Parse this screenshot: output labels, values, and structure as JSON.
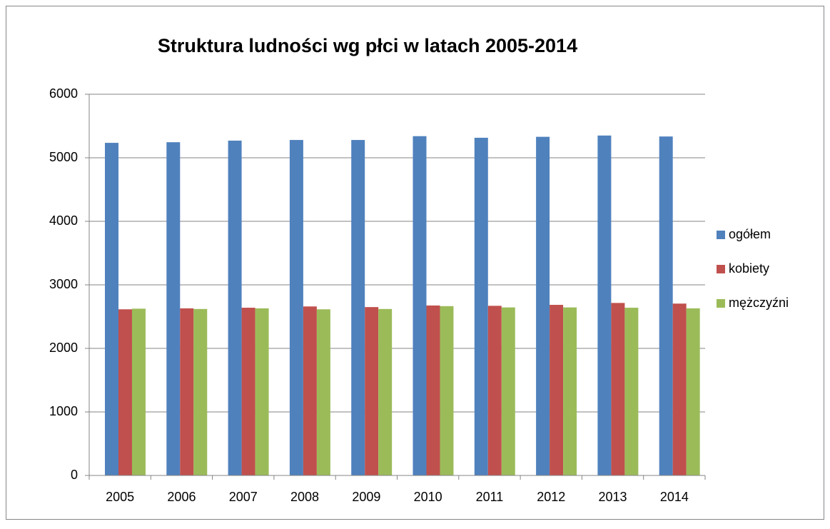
{
  "chart_data": {
    "type": "bar",
    "title": "Struktura ludności wg płci w latach 2005-2014",
    "categories": [
      "2005",
      "2006",
      "2007",
      "2008",
      "2009",
      "2010",
      "2011",
      "2012",
      "2013",
      "2014"
    ],
    "series": [
      {
        "name": "ogółem",
        "color": "#4f81bd",
        "values": [
          5235,
          5245,
          5270,
          5280,
          5280,
          5340,
          5315,
          5330,
          5350,
          5335
        ]
      },
      {
        "name": "kobiety",
        "color": "#c0504d",
        "values": [
          2615,
          2630,
          2640,
          2660,
          2650,
          2675,
          2670,
          2685,
          2715,
          2705
        ]
      },
      {
        "name": "mężczyźni",
        "color": "#9bbb59",
        "values": [
          2625,
          2620,
          2630,
          2615,
          2620,
          2665,
          2645,
          2645,
          2640,
          2630
        ]
      }
    ],
    "ylim": [
      0,
      6000
    ],
    "yticks": [
      0,
      1000,
      2000,
      3000,
      4000,
      5000,
      6000
    ],
    "grid": true,
    "legend": "right"
  }
}
